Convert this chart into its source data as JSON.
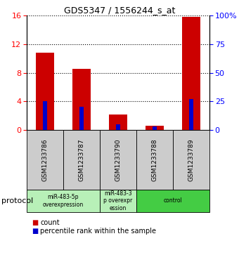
{
  "title": "GDS5347 / 1556244_s_at",
  "samples": [
    "GSM1233786",
    "GSM1233787",
    "GSM1233790",
    "GSM1233788",
    "GSM1233789"
  ],
  "count_values": [
    10.8,
    8.5,
    2.2,
    0.6,
    15.8
  ],
  "percentile_values": [
    25.0,
    20.0,
    5.0,
    3.0,
    27.0
  ],
  "ylim_left": [
    0,
    16
  ],
  "ylim_right": [
    0,
    100
  ],
  "yticks_left": [
    0,
    4,
    8,
    12,
    16
  ],
  "yticks_right": [
    0,
    25,
    50,
    75,
    100
  ],
  "ytick_labels_right": [
    "0",
    "25",
    "50",
    "75",
    "100%"
  ],
  "groups": [
    {
      "label": "miR-483-5p\noverexpression",
      "n_samples": 2,
      "color": "#b8f0b8"
    },
    {
      "label": "miR-483-3\np overexpr\nession",
      "n_samples": 1,
      "color": "#b8f0b8"
    },
    {
      "label": "control",
      "n_samples": 2,
      "color": "#44cc44"
    }
  ],
  "bar_color_count": "#cc0000",
  "bar_color_percentile": "#0000cc",
  "bg_color": "#ffffff",
  "sample_bg_color": "#cccccc",
  "protocol_label": "protocol",
  "legend_count_label": "count",
  "legend_percentile_label": "percentile rank within the sample"
}
